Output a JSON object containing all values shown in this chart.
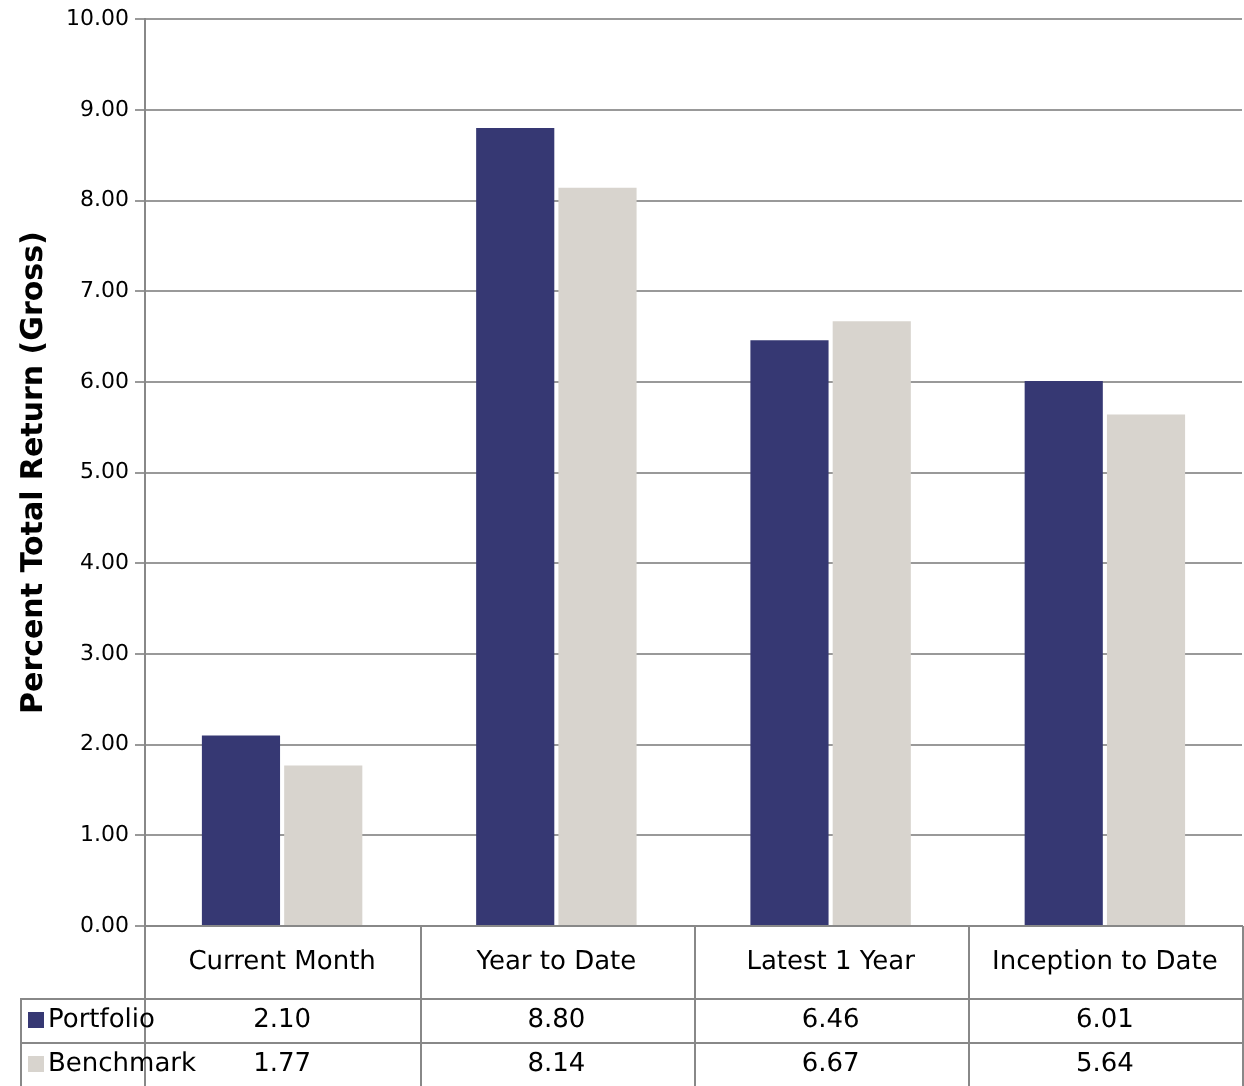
{
  "chart_data": {
    "type": "bar",
    "ylabel": "Percent Total Return (Gross)",
    "categories": [
      "Current Month",
      "Year to Date",
      "Latest 1 Year",
      "Inception to Date"
    ],
    "series": [
      {
        "name": "Portfolio",
        "color": "#363873",
        "values": [
          2.1,
          8.8,
          6.46,
          6.01
        ],
        "value_labels": [
          "2.10",
          "8.80",
          "6.46",
          "6.01"
        ]
      },
      {
        "name": "Benchmark",
        "color": "#d8d4ce",
        "values": [
          1.77,
          8.14,
          6.67,
          5.64
        ],
        "value_labels": [
          "1.77",
          "8.14",
          "6.67",
          "5.64"
        ]
      }
    ],
    "ylim": [
      0,
      10
    ],
    "yticks": [
      {
        "value": 0,
        "label": "0.00"
      },
      {
        "value": 1,
        "label": "1.00"
      },
      {
        "value": 2,
        "label": "2.00"
      },
      {
        "value": 3,
        "label": "3.00"
      },
      {
        "value": 4,
        "label": "4.00"
      },
      {
        "value": 5,
        "label": "5.00"
      },
      {
        "value": 6,
        "label": "6.00"
      },
      {
        "value": 7,
        "label": "7.00"
      },
      {
        "value": 8,
        "label": "8.00"
      },
      {
        "value": 9,
        "label": "9.00"
      },
      {
        "value": 10,
        "label": "10.00"
      }
    ],
    "grid": "y",
    "legend": "bottom"
  }
}
